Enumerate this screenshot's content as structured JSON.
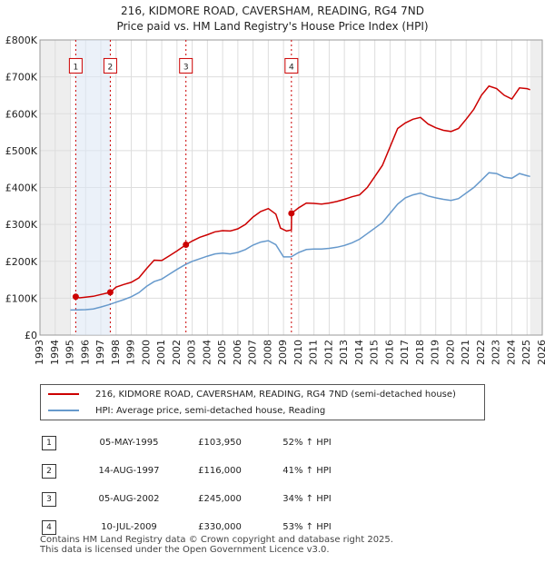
{
  "title": {
    "line1": "216, KIDMORE ROAD, CAVERSHAM, READING, RG4 7ND",
    "line2": "Price paid vs. HM Land Registry's House Price Index (HPI)"
  },
  "chart_data": {
    "type": "line",
    "x_label_years": [
      1993,
      1994,
      1995,
      1996,
      1997,
      1998,
      1999,
      2000,
      2001,
      2002,
      2003,
      2004,
      2005,
      2006,
      2007,
      2008,
      2009,
      2010,
      2011,
      2012,
      2013,
      2014,
      2015,
      2016,
      2017,
      2018,
      2019,
      2020,
      2021,
      2022,
      2023,
      2024,
      2025,
      2026
    ],
    "xlim": [
      1993,
      2026
    ],
    "ylim": [
      0,
      800000
    ],
    "y_ticks": [
      0,
      100000,
      200000,
      300000,
      400000,
      500000,
      600000,
      700000,
      800000
    ],
    "y_tick_labels": [
      "£0",
      "£100K",
      "£200K",
      "£300K",
      "£400K",
      "£500K",
      "£600K",
      "£700K",
      "£800K"
    ],
    "data_window": [
      1995.0,
      2025.2
    ],
    "series": [
      {
        "name": "216, KIDMORE ROAD, CAVERSHAM, READING, RG4 7ND (semi-detached house)",
        "color": "#cc0000",
        "points": [
          [
            1995.35,
            103950
          ],
          [
            1995.6,
            101000
          ],
          [
            1996.0,
            103000
          ],
          [
            1996.5,
            105000
          ],
          [
            1997.0,
            110000
          ],
          [
            1997.62,
            116000
          ],
          [
            1998.0,
            130000
          ],
          [
            1998.5,
            137000
          ],
          [
            1999.0,
            143000
          ],
          [
            1999.5,
            155000
          ],
          [
            2000.0,
            180000
          ],
          [
            2000.5,
            203000
          ],
          [
            2001.0,
            202000
          ],
          [
            2001.5,
            215000
          ],
          [
            2002.0,
            228000
          ],
          [
            2002.59,
            245000
          ],
          [
            2003.0,
            255000
          ],
          [
            2003.5,
            265000
          ],
          [
            2004.0,
            272000
          ],
          [
            2004.5,
            280000
          ],
          [
            2005.0,
            283000
          ],
          [
            2005.5,
            282000
          ],
          [
            2006.0,
            288000
          ],
          [
            2006.5,
            300000
          ],
          [
            2007.0,
            320000
          ],
          [
            2007.5,
            335000
          ],
          [
            2008.0,
            343000
          ],
          [
            2008.5,
            328000
          ],
          [
            2008.8,
            290000
          ],
          [
            2009.2,
            282000
          ],
          [
            2009.52,
            285000
          ],
          [
            2009.53,
            330000
          ],
          [
            2010.0,
            345000
          ],
          [
            2010.5,
            358000
          ],
          [
            2011.0,
            357000
          ],
          [
            2011.5,
            355000
          ],
          [
            2012.0,
            358000
          ],
          [
            2012.5,
            362000
          ],
          [
            2013.0,
            368000
          ],
          [
            2013.5,
            375000
          ],
          [
            2014.0,
            380000
          ],
          [
            2014.5,
            400000
          ],
          [
            2015.0,
            430000
          ],
          [
            2015.5,
            460000
          ],
          [
            2016.0,
            510000
          ],
          [
            2016.5,
            560000
          ],
          [
            2017.0,
            575000
          ],
          [
            2017.5,
            585000
          ],
          [
            2018.0,
            590000
          ],
          [
            2018.5,
            572000
          ],
          [
            2019.0,
            562000
          ],
          [
            2019.5,
            555000
          ],
          [
            2020.0,
            552000
          ],
          [
            2020.5,
            560000
          ],
          [
            2021.0,
            585000
          ],
          [
            2021.5,
            612000
          ],
          [
            2022.0,
            650000
          ],
          [
            2022.5,
            675000
          ],
          [
            2023.0,
            668000
          ],
          [
            2023.5,
            650000
          ],
          [
            2024.0,
            640000
          ],
          [
            2024.5,
            670000
          ],
          [
            2025.0,
            668000
          ],
          [
            2025.2,
            665000
          ]
        ]
      },
      {
        "name": "HPI: Average price, semi-detached house, Reading",
        "color": "#6699cc",
        "points": [
          [
            1995.0,
            68000
          ],
          [
            1995.5,
            68500
          ],
          [
            1996.0,
            69000
          ],
          [
            1996.5,
            71000
          ],
          [
            1997.0,
            76000
          ],
          [
            1997.5,
            82000
          ],
          [
            1998.0,
            89000
          ],
          [
            1998.5,
            96000
          ],
          [
            1999.0,
            104000
          ],
          [
            1999.5,
            115000
          ],
          [
            2000.0,
            132000
          ],
          [
            2000.5,
            145000
          ],
          [
            2001.0,
            152000
          ],
          [
            2001.5,
            165000
          ],
          [
            2002.0,
            178000
          ],
          [
            2002.5,
            190000
          ],
          [
            2003.0,
            200000
          ],
          [
            2003.5,
            207000
          ],
          [
            2004.0,
            214000
          ],
          [
            2004.5,
            220000
          ],
          [
            2005.0,
            222000
          ],
          [
            2005.5,
            220000
          ],
          [
            2006.0,
            224000
          ],
          [
            2006.5,
            232000
          ],
          [
            2007.0,
            244000
          ],
          [
            2007.5,
            252000
          ],
          [
            2008.0,
            256000
          ],
          [
            2008.5,
            245000
          ],
          [
            2009.0,
            212000
          ],
          [
            2009.5,
            212000
          ],
          [
            2010.0,
            224000
          ],
          [
            2010.5,
            232000
          ],
          [
            2011.0,
            233000
          ],
          [
            2011.5,
            233000
          ],
          [
            2012.0,
            235000
          ],
          [
            2012.5,
            238000
          ],
          [
            2013.0,
            243000
          ],
          [
            2013.5,
            250000
          ],
          [
            2014.0,
            260000
          ],
          [
            2014.5,
            275000
          ],
          [
            2015.0,
            290000
          ],
          [
            2015.5,
            305000
          ],
          [
            2016.0,
            330000
          ],
          [
            2016.5,
            355000
          ],
          [
            2017.0,
            372000
          ],
          [
            2017.5,
            380000
          ],
          [
            2018.0,
            385000
          ],
          [
            2018.5,
            377000
          ],
          [
            2019.0,
            372000
          ],
          [
            2019.5,
            368000
          ],
          [
            2020.0,
            365000
          ],
          [
            2020.5,
            370000
          ],
          [
            2021.0,
            385000
          ],
          [
            2021.5,
            400000
          ],
          [
            2022.0,
            420000
          ],
          [
            2022.5,
            440000
          ],
          [
            2023.0,
            438000
          ],
          [
            2023.5,
            428000
          ],
          [
            2024.0,
            425000
          ],
          [
            2024.5,
            438000
          ],
          [
            2025.0,
            432000
          ],
          [
            2025.2,
            430000
          ]
        ]
      }
    ],
    "sales": [
      {
        "label": "1",
        "date": "05-MAY-1995",
        "x": 1995.35,
        "price": 103950,
        "price_text": "£103,950",
        "hpi": "52% ↑ HPI"
      },
      {
        "label": "2",
        "date": "14-AUG-1997",
        "x": 1997.62,
        "price": 116000,
        "price_text": "£116,000",
        "hpi": "41% ↑ HPI"
      },
      {
        "label": "3",
        "date": "05-AUG-2002",
        "x": 2002.59,
        "price": 245000,
        "price_text": "£245,000",
        "hpi": "34% ↑ HPI"
      },
      {
        "label": "4",
        "date": "10-JUL-2009",
        "x": 2009.52,
        "price": 330000,
        "price_text": "£330,000",
        "hpi": "53% ↑ HPI"
      }
    ],
    "marker_label_value": 730000,
    "grid": true
  },
  "legend": {
    "property": "216, KIDMORE ROAD, CAVERSHAM, READING, RG4 7ND (semi-detached house)",
    "hpi": "HPI: Average price, semi-detached house, Reading"
  },
  "footer": {
    "line1": "Contains HM Land Registry data © Crown copyright and database right 2025.",
    "line2": "This data is licensed under the Open Government Licence v3.0."
  }
}
